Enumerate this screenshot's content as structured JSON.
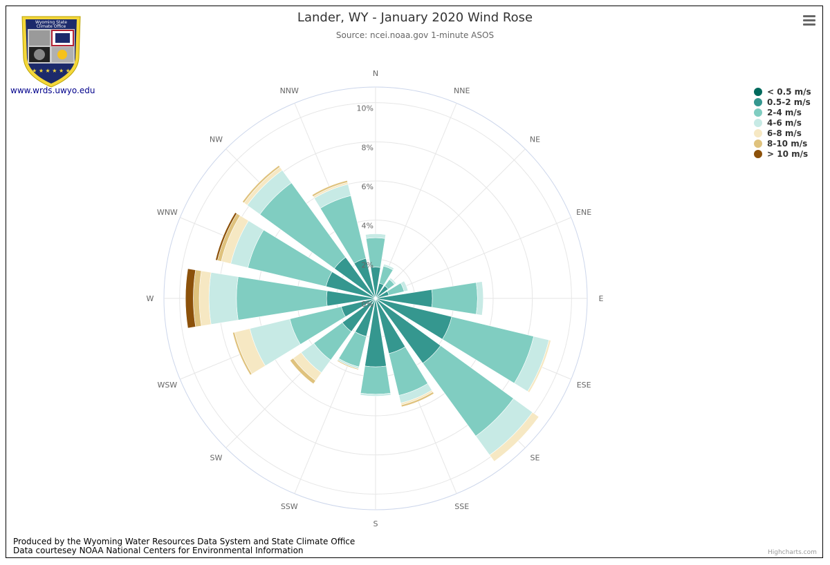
{
  "header": {
    "title": "Lander, WY - January 2020 Wind Rose",
    "subtitle": "Source: ncei.noaa.gov 1-minute ASOS"
  },
  "logo": {
    "text_line1": "Wyoming State",
    "text_line2": "Climate Office",
    "url": "www.wrds.uwyo.edu"
  },
  "menu": {
    "icon": "hamburger-menu-icon"
  },
  "footer": {
    "line1": "Produced by the Wyoming Water Resources Data System and State Climate Office",
    "line2": "Data courtesey NOAA National Centers for Environmental Information",
    "credits": "Highcharts.com"
  },
  "chart_data": {
    "type": "windrose",
    "title": "Lander, WY - January 2020 Wind Rose",
    "subtitle": "Source: ncei.noaa.gov 1-minute ASOS",
    "directions": [
      "N",
      "NNE",
      "NE",
      "ENE",
      "E",
      "ESE",
      "SE",
      "SSE",
      "S",
      "SSW",
      "SW",
      "WSW",
      "W",
      "WNW",
      "NW",
      "NNW"
    ],
    "radial_ticks": [
      "0%",
      "2%",
      "4%",
      "6%",
      "8%",
      "10%"
    ],
    "radial_max": 10.8,
    "stacked": true,
    "legend_position": "top-right",
    "series": [
      {
        "name": "< 0.5 m/s",
        "color": "#00695c",
        "values": [
          0,
          0,
          0,
          0,
          0,
          0,
          0,
          0,
          0,
          0,
          0,
          0,
          0,
          0,
          0,
          0
        ]
      },
      {
        "name": "0.5-2 m/s",
        "color": "#35978f",
        "values": [
          1.6,
          0.8,
          0.8,
          0.7,
          2.9,
          4.0,
          4.1,
          2.9,
          3.5,
          2.0,
          2.1,
          1.8,
          2.5,
          2.6,
          2.6,
          2.1
        ]
      },
      {
        "name": "2-4 m/s",
        "color": "#80cdc1",
        "values": [
          1.5,
          0.9,
          0.4,
          0.8,
          2.3,
          4.3,
          4.6,
          2.2,
          1.4,
          1.6,
          1.8,
          2.7,
          4.6,
          4.1,
          4.7,
          3.3
        ]
      },
      {
        "name": "4-6 m/s",
        "color": "#c7eae5",
        "values": [
          0.2,
          0.1,
          0.1,
          0.2,
          0.3,
          0.8,
          1.2,
          0.4,
          0.1,
          0.1,
          0.8,
          2.1,
          1.4,
          0.9,
          0.8,
          0.6
        ]
      },
      {
        "name": "6-8 m/s",
        "color": "#f6e8c3",
        "values": [
          0,
          0,
          0,
          0,
          0,
          0.1,
          0.4,
          0.1,
          0,
          0,
          0.5,
          0.8,
          0.5,
          0.5,
          0.2,
          0.1
        ]
      },
      {
        "name": "8-10 m/s",
        "color": "#dfc27d",
        "values": [
          0,
          0,
          0,
          0,
          0,
          0,
          0,
          0.1,
          0,
          0.05,
          0.2,
          0.1,
          0.3,
          0.2,
          0.1,
          0.1
        ]
      },
      {
        "name": "> 10 m/s",
        "color": "#8c510a",
        "values": [
          0,
          0,
          0,
          0,
          0,
          0,
          0,
          0,
          0,
          0,
          0,
          0,
          0.4,
          0.1,
          0,
          0
        ]
      }
    ]
  }
}
